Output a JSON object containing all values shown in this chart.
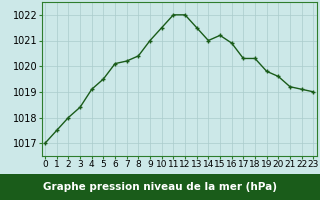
{
  "x": [
    0,
    1,
    2,
    3,
    4,
    5,
    6,
    7,
    8,
    9,
    10,
    11,
    12,
    13,
    14,
    15,
    16,
    17,
    18,
    19,
    20,
    21,
    22,
    23
  ],
  "y": [
    1017.0,
    1017.5,
    1018.0,
    1018.4,
    1019.1,
    1019.5,
    1020.1,
    1020.2,
    1020.4,
    1021.0,
    1021.5,
    1022.0,
    1022.0,
    1021.5,
    1021.0,
    1021.2,
    1020.9,
    1020.3,
    1020.3,
    1019.8,
    1019.6,
    1019.2,
    1019.1,
    1019.0
  ],
  "line_color": "#1a5c1a",
  "marker": "+",
  "marker_size": 3.5,
  "marker_linewidth": 1.0,
  "bg_color": "#cce8e8",
  "grid_color": "#aacccc",
  "xlabel": "Graphe pression niveau de la mer (hPa)",
  "xlabel_fontsize": 7.5,
  "xlabel_bg": "#1a5c1a",
  "xlabel_color": "#ffffff",
  "ylabel_ticks": [
    1017,
    1018,
    1019,
    1020,
    1021,
    1022
  ],
  "xlim": [
    -0.3,
    23.3
  ],
  "ylim": [
    1016.5,
    1022.5
  ],
  "tick_fontsize": 6.5,
  "ytick_fontsize": 7,
  "border_color": "#2e7d2e",
  "linewidth": 1.0
}
